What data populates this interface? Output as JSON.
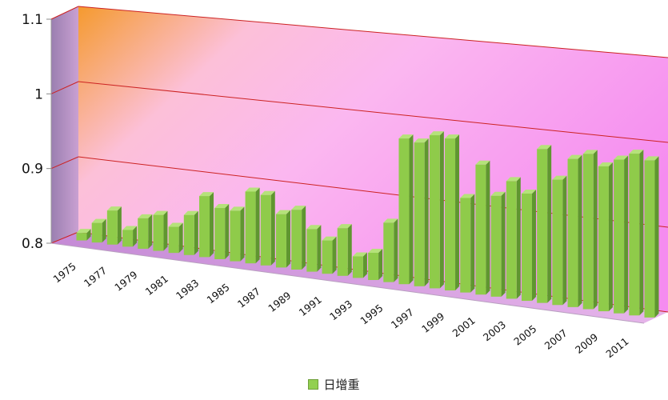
{
  "chart_data": {
    "type": "bar",
    "title": "",
    "xlabel": "",
    "ylabel": "",
    "ylim": [
      0.8,
      1.1
    ],
    "yticks": [
      "0.8",
      "0.9",
      "1",
      "1.1"
    ],
    "grid": true,
    "legend_position": "bottom",
    "colors": {
      "bar_front": "#8fcb4a",
      "bar_side": "#5f9630",
      "bar_top": "#b5e27a",
      "gridline": "#cc2222"
    },
    "categories": [
      "1975",
      "1976",
      "1977",
      "1978",
      "1979",
      "1980",
      "1981",
      "1982",
      "1983",
      "1984",
      "1985",
      "1986",
      "1987",
      "1988",
      "1989",
      "1990",
      "1991",
      "1992",
      "1993",
      "1994",
      "1995",
      "1996",
      "1997",
      "1998",
      "1999",
      "2000",
      "2001",
      "2002",
      "2003",
      "2004",
      "2005",
      "2006",
      "2007",
      "2008",
      "2009",
      "2010",
      "2011",
      "2012"
    ],
    "tick_labels": [
      "1975",
      "1977",
      "1979",
      "1981",
      "1983",
      "1985",
      "1987",
      "1989",
      "1991",
      "1993",
      "1995",
      "1997",
      "1999",
      "2001",
      "2003",
      "2005",
      "2007",
      "2009",
      "2011"
    ],
    "series": [
      {
        "name": "日增重",
        "values": [
          0.81,
          0.826,
          0.845,
          0.822,
          0.84,
          0.847,
          0.834,
          0.852,
          0.879,
          0.866,
          0.865,
          0.892,
          0.89,
          0.868,
          0.876,
          0.854,
          0.842,
          0.86,
          0.827,
          0.834,
          0.874,
          0.981,
          0.978,
          0.989,
          0.987,
          0.916,
          0.959,
          0.923,
          0.943,
          0.93,
          0.986,
          0.951,
          0.978,
          0.986,
          0.973,
          0.983,
          0.992,
          0.986
        ]
      }
    ]
  }
}
